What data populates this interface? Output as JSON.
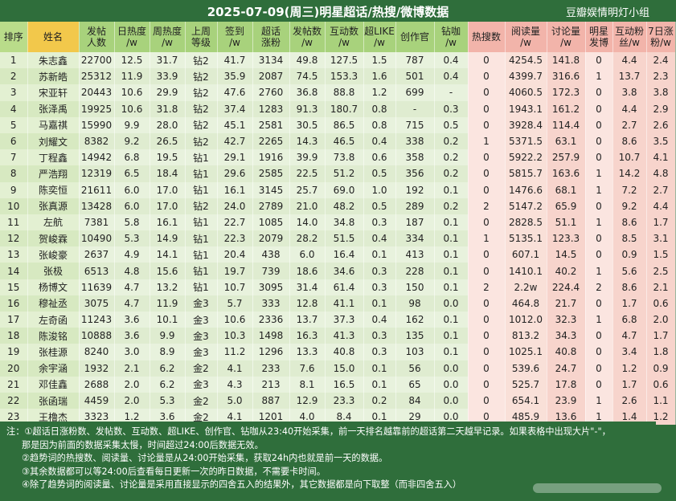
{
  "title": "2025-07-09(周三)明星超话/热搜/微博数据",
  "group": "豆瓣娱情明灯小组",
  "columns": [
    {
      "label": "排序",
      "cls": "h-rank"
    },
    {
      "label": "姓名",
      "cls": "h-name"
    },
    {
      "label": "发帖\n人数",
      "cls": "h-grn"
    },
    {
      "label": "日热度\n/w",
      "cls": "h-grn-b"
    },
    {
      "label": "周热度\n/w",
      "cls": "h-grn"
    },
    {
      "label": "上周\n等级",
      "cls": "h-grn"
    },
    {
      "label": "签到\n/w",
      "cls": "h-grn"
    },
    {
      "label": "超话\n涨粉",
      "cls": "h-grn"
    },
    {
      "label": "发帖数\n/w",
      "cls": "h-grn"
    },
    {
      "label": "互动数\n/w",
      "cls": "h-grn"
    },
    {
      "label": "超LIKE\n/w",
      "cls": "h-grn"
    },
    {
      "label": "创作官",
      "cls": "h-grn"
    },
    {
      "label": "钻咖\n/w",
      "cls": "h-grn"
    },
    {
      "label": "热搜数",
      "cls": "h-pink"
    },
    {
      "label": "阅读量\n/w",
      "cls": "h-pink"
    },
    {
      "label": "讨论量\n/w",
      "cls": "h-pink"
    },
    {
      "label": "明星\n发博",
      "cls": "h-pink"
    },
    {
      "label": "互动粉\n丝/w",
      "cls": "h-pink"
    },
    {
      "label": "7日涨\n粉/w",
      "cls": "h-pink"
    }
  ],
  "rows": [
    {
      "cells": [
        "1",
        "朱志鑫",
        "22700",
        "12.5",
        "31.7",
        "钻2",
        "41.7",
        "3134",
        "49.8",
        "127.5",
        "1.5",
        "787",
        "0.4",
        "0",
        "4254.5",
        "141.8",
        "0",
        "4.4",
        "2.4"
      ],
      "styles": {
        "2": "blue"
      }
    },
    {
      "cells": [
        "2",
        "苏新皓",
        "25312",
        "11.9",
        "33.9",
        "钻2",
        "35.9",
        "2087",
        "74.5",
        "153.3",
        "1.6",
        "501",
        "0.4",
        "0",
        "4399.7",
        "316.6",
        "1",
        "13.7",
        "2.3"
      ],
      "styles": {
        "6": "blue",
        "15": "red"
      }
    },
    {
      "cells": [
        "3",
        "宋亚轩",
        "20443",
        "10.6",
        "29.9",
        "钻2",
        "47.6",
        "2760",
        "36.8",
        "88.8",
        "1.2",
        "699",
        "-",
        "0",
        "4060.5",
        "172.3",
        "0",
        "3.8",
        "3.8"
      ],
      "styles": {}
    },
    {
      "cells": [
        "4",
        "张泽禹",
        "19925",
        "10.6",
        "31.8",
        "钻2",
        "37.4",
        "1283",
        "91.3",
        "180.7",
        "0.8",
        "-",
        "0.3",
        "0",
        "1943.1",
        "161.2",
        "0",
        "4.4",
        "2.9"
      ],
      "styles": {}
    },
    {
      "cells": [
        "5",
        "马嘉祺",
        "15990",
        "9.9",
        "28.0",
        "钻2",
        "45.1",
        "2581",
        "30.5",
        "86.5",
        "0.8",
        "715",
        "0.5",
        "0",
        "3928.4",
        "114.4",
        "0",
        "2.7",
        "2.6"
      ],
      "styles": {}
    },
    {
      "cells": [
        "6",
        "刘耀文",
        "8382",
        "9.2",
        "26.5",
        "钻2",
        "42.7",
        "2265",
        "14.3",
        "46.5",
        "0.4",
        "338",
        "0.2",
        "1",
        "5371.5",
        "63.1",
        "0",
        "8.6",
        "3.5"
      ],
      "styles": {}
    },
    {
      "cells": [
        "7",
        "丁程鑫",
        "14942",
        "6.8",
        "19.5",
        "钻1",
        "29.1",
        "1916",
        "39.9",
        "73.8",
        "0.6",
        "358",
        "0.2",
        "0",
        "5922.2",
        "257.9",
        "0",
        "10.7",
        "4.1"
      ],
      "styles": {}
    },
    {
      "cells": [
        "8",
        "严浩翔",
        "12319",
        "6.5",
        "18.4",
        "钻1",
        "29.6",
        "2585",
        "22.5",
        "51.2",
        "0.5",
        "356",
        "0.2",
        "0",
        "5815.7",
        "163.6",
        "1",
        "14.2",
        "4.8"
      ],
      "styles": {
        "2": "red"
      }
    },
    {
      "cells": [
        "9",
        "陈奕恒",
        "21611",
        "6.0",
        "17.0",
        "钻1",
        "16.1",
        "3145",
        "25.7",
        "69.0",
        "1.0",
        "192",
        "0.1",
        "0",
        "1476.6",
        "68.1",
        "1",
        "7.2",
        "2.7"
      ],
      "styles": {}
    },
    {
      "cells": [
        "10",
        "张真源",
        "13428",
        "6.0",
        "17.0",
        "钻2",
        "24.0",
        "2789",
        "21.0",
        "48.2",
        "0.5",
        "289",
        "0.2",
        "2",
        "5147.2",
        "65.9",
        "0",
        "9.2",
        "4.4"
      ],
      "styles": {}
    },
    {
      "cells": [
        "11",
        "左航",
        "7381",
        "5.8",
        "16.1",
        "钻1",
        "22.7",
        "1085",
        "14.0",
        "34.8",
        "0.3",
        "187",
        "0.1",
        "0",
        "2828.5",
        "51.1",
        "1",
        "8.6",
        "1.7"
      ],
      "styles": {
        "6": "red"
      }
    },
    {
      "cells": [
        "12",
        "贺峻霖",
        "10490",
        "5.3",
        "14.9",
        "钻1",
        "22.3",
        "2079",
        "28.2",
        "51.5",
        "0.4",
        "334",
        "0.1",
        "1",
        "5135.1",
        "123.3",
        "0",
        "8.5",
        "3.1"
      ],
      "styles": {}
    },
    {
      "cells": [
        "13",
        "张峻豪",
        "2637",
        "4.9",
        "14.1",
        "钻1",
        "20.4",
        "438",
        "6.0",
        "16.4",
        "0.1",
        "413",
        "0.1",
        "0",
        "607.1",
        "14.5",
        "0",
        "0.9",
        "1.5"
      ],
      "styles": {
        "15": "blue"
      }
    },
    {
      "cells": [
        "14",
        "张极",
        "6513",
        "4.8",
        "15.6",
        "钻1",
        "19.7",
        "739",
        "18.6",
        "34.6",
        "0.3",
        "228",
        "0.1",
        "0",
        "1410.1",
        "40.2",
        "1",
        "5.6",
        "2.5"
      ],
      "styles": {
        "6": "blue"
      }
    },
    {
      "cells": [
        "15",
        "杨博文",
        "11639",
        "4.7",
        "13.2",
        "钻1",
        "10.7",
        "3095",
        "31.4",
        "61.4",
        "0.3",
        "150",
        "0.1",
        "2",
        "2.2w",
        "224.4",
        "2",
        "8.6",
        "2.1"
      ],
      "styles": {
        "2": "red",
        "14": "red",
        "15": "red"
      }
    },
    {
      "cells": [
        "16",
        "穆祉丞",
        "3075",
        "4.7",
        "11.9",
        "金3",
        "5.7",
        "333",
        "12.8",
        "41.1",
        "0.1",
        "98",
        "0.0",
        "0",
        "464.8",
        "21.7",
        "0",
        "1.7",
        "0.6"
      ],
      "styles": {
        "3": "red"
      }
    },
    {
      "cells": [
        "17",
        "左奇函",
        "11243",
        "3.6",
        "10.1",
        "金3",
        "10.6",
        "2336",
        "13.7",
        "37.3",
        "0.4",
        "162",
        "0.1",
        "0",
        "1012.0",
        "32.3",
        "1",
        "6.8",
        "2.0"
      ],
      "styles": {}
    },
    {
      "cells": [
        "18",
        "陈浚铭",
        "10888",
        "3.6",
        "9.9",
        "金3",
        "10.3",
        "1498",
        "16.3",
        "41.3",
        "0.3",
        "135",
        "0.1",
        "0",
        "813.2",
        "34.3",
        "0",
        "4.7",
        "1.7"
      ],
      "styles": {}
    },
    {
      "cells": [
        "19",
        "张桂源",
        "8240",
        "3.0",
        "8.9",
        "金3",
        "11.2",
        "1296",
        "13.3",
        "40.8",
        "0.3",
        "103",
        "0.1",
        "0",
        "1025.1",
        "40.8",
        "0",
        "3.4",
        "1.8"
      ],
      "styles": {}
    },
    {
      "cells": [
        "20",
        "余宇涵",
        "1932",
        "2.1",
        "6.2",
        "金2",
        "4.1",
        "233",
        "7.6",
        "15.0",
        "0.1",
        "56",
        "0.0",
        "0",
        "539.6",
        "24.7",
        "0",
        "1.2",
        "0.9"
      ],
      "styles": {}
    },
    {
      "cells": [
        "21",
        "邓佳鑫",
        "2688",
        "2.0",
        "6.2",
        "金3",
        "4.3",
        "213",
        "8.1",
        "16.5",
        "0.1",
        "65",
        "0.0",
        "0",
        "525.7",
        "17.8",
        "0",
        "1.7",
        "0.6"
      ],
      "styles": {
        "6": "blue"
      }
    },
    {
      "cells": [
        "22",
        "张函瑞",
        "4459",
        "2.0",
        "5.3",
        "金2",
        "5.0",
        "887",
        "12.9",
        "23.3",
        "0.2",
        "84",
        "0.0",
        "0",
        "654.1",
        "23.9",
        "1",
        "2.6",
        "1.1"
      ],
      "styles": {
        "6": "blue"
      }
    },
    {
      "cells": [
        "23",
        "王橹杰",
        "3323",
        "1.2",
        "3.6",
        "金2",
        "4.1",
        "1201",
        "4.0",
        "8.4",
        "0.1",
        "29",
        "0.0",
        "0",
        "485.9",
        "13.6",
        "1",
        "1.4",
        "1.2"
      ],
      "styles": {}
    }
  ],
  "notes": [
    "注：①超话日涨粉数、发帖数、互动数、超LIKE、创作官、钻咖从23:40开始采集，前一天排名越靠前的超话第二天越早记录。如果表格中出现大片\"-\"，",
    "那是因为前面的数据采集太慢，时间超过24:00后数据无效。",
    "②趋势词的热搜数、阅读量、讨论量是从24:00开始采集，获取24h内也就是前一天的数据。",
    "③其余数据都可以等24:00后查看每日更新一次的昨日数据，不需要卡时间。",
    "④除了趋势词的阅读量、讨论量是采用直接显示的四舍五入的结果外，其它数据都是向下取整（而非四舍五入）"
  ],
  "colors": {
    "header_bg": "#2f6e3b",
    "red_value": "#c0392b",
    "blue_value": "#2a6fb0"
  }
}
